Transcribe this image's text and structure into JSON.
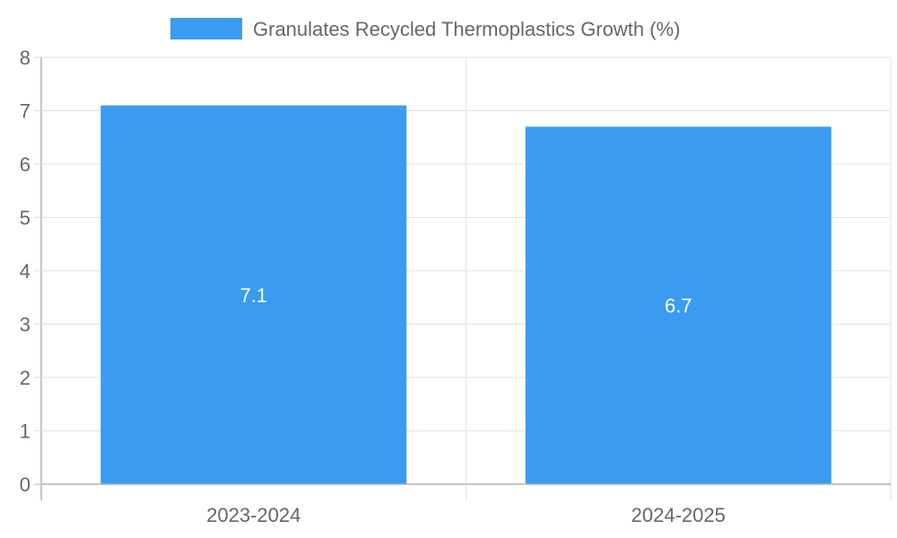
{
  "chart_data": {
    "type": "bar",
    "categories": [
      "2023-2024",
      "2024-2025"
    ],
    "series": [
      {
        "name": "Granulates Recycled Thermoplastics Growth (%)",
        "values": [
          7.1,
          6.7
        ],
        "color": "#3a9bf1"
      }
    ],
    "value_labels": [
      "7.1",
      "6.7"
    ],
    "ylim": [
      0,
      8
    ],
    "yticks": [
      0,
      1,
      2,
      3,
      4,
      5,
      6,
      7,
      8
    ],
    "legend": "top-center",
    "grid": true,
    "title": "",
    "xlabel": "",
    "ylabel": ""
  }
}
